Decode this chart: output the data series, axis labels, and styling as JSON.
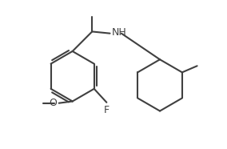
{
  "bg_color": "#ffffff",
  "bond_color": "#404040",
  "text_color": "#404040",
  "label_F": "F",
  "label_O": "O",
  "label_NH": "NH",
  "label_Me_left": "O",
  "figsize": [
    2.84,
    1.86
  ],
  "dpi": 100
}
